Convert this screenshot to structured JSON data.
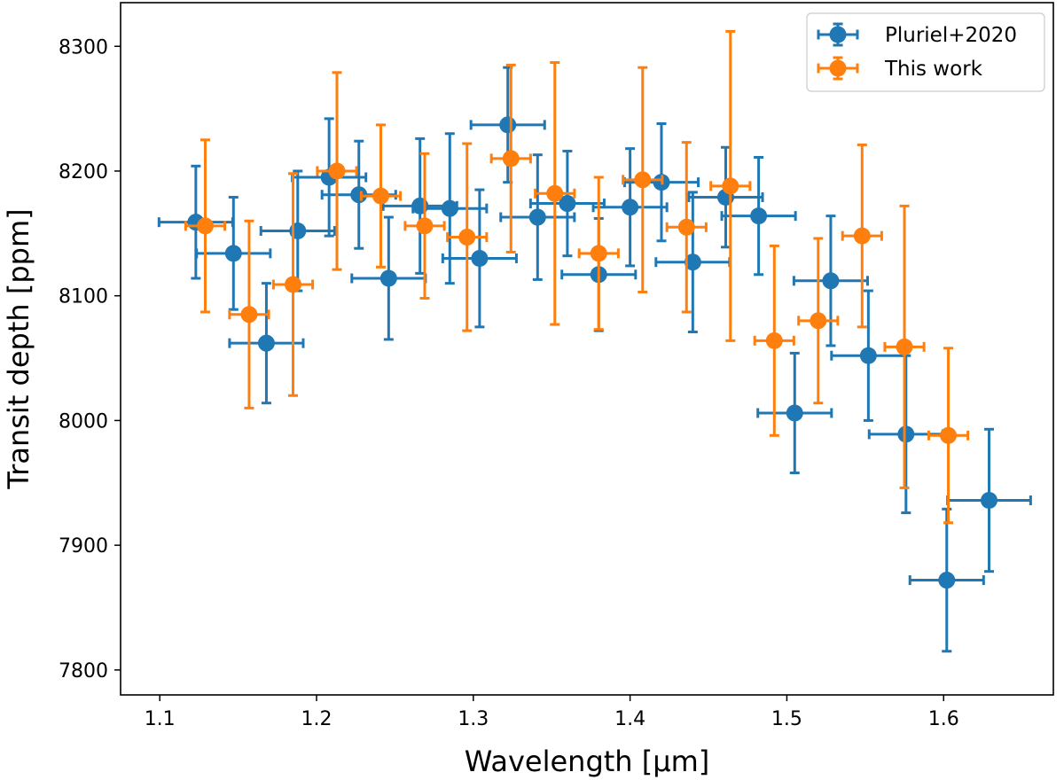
{
  "chart_data": {
    "type": "scatter",
    "title": "",
    "xlabel": "Wavelength [μm]",
    "ylabel": "Transit depth [ppm]",
    "xlim": [
      1.075,
      1.67
    ],
    "ylim": [
      7780,
      8335
    ],
    "xticks": [
      1.1,
      1.2,
      1.3,
      1.4,
      1.5,
      1.6
    ],
    "yticks": [
      7800,
      7900,
      8000,
      8100,
      8200,
      8300
    ],
    "grid": false,
    "legend_position": "top-right",
    "series": [
      {
        "name": "Pluriel+2020",
        "color": "#1f77b4",
        "points": [
          {
            "x": 1.123,
            "y": 8159,
            "xerr": 0.0235,
            "yerr": 45
          },
          {
            "x": 1.147,
            "y": 8134,
            "xerr": 0.0235,
            "yerr": 45
          },
          {
            "x": 1.168,
            "y": 8062,
            "xerr": 0.0235,
            "yerr": 48
          },
          {
            "x": 1.188,
            "y": 8152,
            "xerr": 0.0235,
            "yerr": 48
          },
          {
            "x": 1.208,
            "y": 8195,
            "xerr": 0.0235,
            "yerr": 47
          },
          {
            "x": 1.227,
            "y": 8181,
            "xerr": 0.0235,
            "yerr": 43
          },
          {
            "x": 1.246,
            "y": 8114,
            "xerr": 0.0235,
            "yerr": 49
          },
          {
            "x": 1.266,
            "y": 8172,
            "xerr": 0.0235,
            "yerr": 54
          },
          {
            "x": 1.285,
            "y": 8170,
            "xerr": 0.0235,
            "yerr": 60
          },
          {
            "x": 1.304,
            "y": 8130,
            "xerr": 0.0235,
            "yerr": 55
          },
          {
            "x": 1.322,
            "y": 8237,
            "xerr": 0.0235,
            "yerr": 46
          },
          {
            "x": 1.341,
            "y": 8163,
            "xerr": 0.0235,
            "yerr": 50
          },
          {
            "x": 1.36,
            "y": 8174,
            "xerr": 0.0235,
            "yerr": 42
          },
          {
            "x": 1.38,
            "y": 8117,
            "xerr": 0.0235,
            "yerr": 45
          },
          {
            "x": 1.4,
            "y": 8171,
            "xerr": 0.0235,
            "yerr": 47
          },
          {
            "x": 1.42,
            "y": 8191,
            "xerr": 0.0235,
            "yerr": 47
          },
          {
            "x": 1.44,
            "y": 8127,
            "xerr": 0.0235,
            "yerr": 56
          },
          {
            "x": 1.461,
            "y": 8179,
            "xerr": 0.0235,
            "yerr": 40
          },
          {
            "x": 1.482,
            "y": 8164,
            "xerr": 0.0235,
            "yerr": 47
          },
          {
            "x": 1.505,
            "y": 8006,
            "xerr": 0.0235,
            "yerr": 48
          },
          {
            "x": 1.528,
            "y": 8112,
            "xerr": 0.0235,
            "yerr": 52
          },
          {
            "x": 1.552,
            "y": 8052,
            "xerr": 0.0235,
            "yerr": 52
          },
          {
            "x": 1.576,
            "y": 7989,
            "xerr": 0.0235,
            "yerr": 63
          },
          {
            "x": 1.602,
            "y": 7872,
            "xerr": 0.0235,
            "yerr": 57
          },
          {
            "x": 1.629,
            "y": 7936,
            "xerr": 0.0265,
            "yerr": 57
          }
        ]
      },
      {
        "name": "This work",
        "color": "#ff7f0e",
        "points": [
          {
            "x": 1.129,
            "y": 8156,
            "xerr": 0.0125,
            "yerr": 69
          },
          {
            "x": 1.157,
            "y": 8085,
            "xerr": 0.0125,
            "yerr": 75
          },
          {
            "x": 1.185,
            "y": 8109,
            "xerr": 0.0125,
            "yerr": 89
          },
          {
            "x": 1.213,
            "y": 8200,
            "xerr": 0.0125,
            "yerr": 79
          },
          {
            "x": 1.241,
            "y": 8180,
            "xerr": 0.0125,
            "yerr": 57
          },
          {
            "x": 1.269,
            "y": 8156,
            "xerr": 0.0125,
            "yerr": 58
          },
          {
            "x": 1.296,
            "y": 8147,
            "xerr": 0.0125,
            "yerr": 75
          },
          {
            "x": 1.324,
            "y": 8210,
            "xerr": 0.0125,
            "yerr": 75
          },
          {
            "x": 1.352,
            "y": 8182,
            "xerr": 0.0125,
            "yerr": 105
          },
          {
            "x": 1.38,
            "y": 8134,
            "xerr": 0.0125,
            "yerr": 61
          },
          {
            "x": 1.408,
            "y": 8193,
            "xerr": 0.0125,
            "yerr": 90
          },
          {
            "x": 1.436,
            "y": 8155,
            "xerr": 0.0125,
            "yerr": 68
          },
          {
            "x": 1.464,
            "y": 8188,
            "xerr": 0.0125,
            "yerr": 124
          },
          {
            "x": 1.492,
            "y": 8064,
            "xerr": 0.0125,
            "yerr": 76
          },
          {
            "x": 1.52,
            "y": 8080,
            "xerr": 0.0125,
            "yerr": 66
          },
          {
            "x": 1.548,
            "y": 8148,
            "xerr": 0.0125,
            "yerr": 73
          },
          {
            "x": 1.575,
            "y": 8059,
            "xerr": 0.0125,
            "yerr": 113
          },
          {
            "x": 1.603,
            "y": 7988,
            "xerr": 0.0125,
            "yerr": 70
          }
        ]
      }
    ]
  }
}
